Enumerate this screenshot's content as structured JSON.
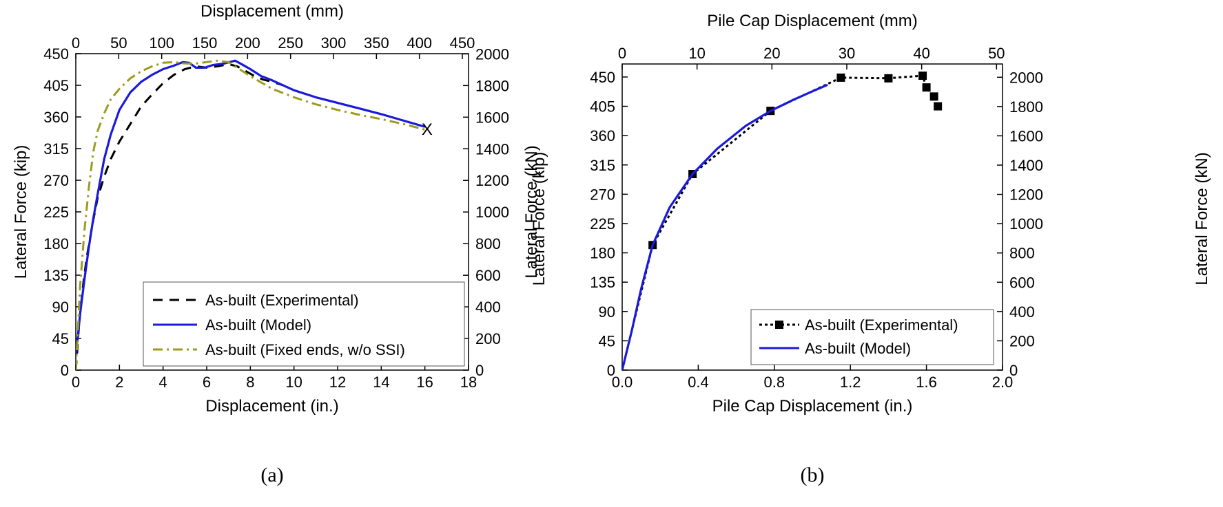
{
  "chart_data": [
    {
      "type": "line",
      "panel_label": "(a)",
      "xlabel": "Displacement (in.)",
      "x2label": "Displacement (mm)",
      "ylabel": "Lateral Force (kip)",
      "y2label": "Lateral Force (kN)",
      "xlim": [
        0,
        18
      ],
      "ylim": [
        0,
        450
      ],
      "x2lim": [
        0,
        457.2
      ],
      "y2lim": [
        0,
        2001.7
      ],
      "xticks": [
        0,
        2,
        4,
        6,
        8,
        10,
        12,
        14,
        16,
        18
      ],
      "yticks": [
        0,
        45,
        90,
        135,
        180,
        225,
        270,
        315,
        360,
        405,
        450
      ],
      "x2ticks": [
        0,
        50,
        100,
        150,
        200,
        250,
        300,
        350,
        400,
        450
      ],
      "y2ticks": [
        0,
        200,
        400,
        600,
        800,
        1000,
        1200,
        1400,
        1600,
        1800,
        2000
      ],
      "legend_position": "bottom-right",
      "annotation": "X",
      "annotation_point": [
        16.1,
        342
      ],
      "series": [
        {
          "name": "As-built (Experimental)",
          "style": "dashed",
          "color": "#000000",
          "x": [
            0.0,
            0.05,
            0.1,
            0.2,
            0.35,
            0.5,
            0.75,
            1.0,
            1.3,
            1.6,
            2.0,
            2.5,
            3.0,
            3.5,
            4.0,
            4.5,
            5.0,
            5.5,
            6.0,
            6.5,
            7.0,
            7.4,
            7.8,
            8.2,
            8.6,
            9.0,
            9.5
          ],
          "y": [
            0,
            20,
            45,
            80,
            125,
            160,
            205,
            245,
            275,
            300,
            325,
            350,
            375,
            392,
            408,
            420,
            428,
            432,
            430,
            432,
            435,
            432,
            425,
            418,
            413,
            410,
            405
          ]
        },
        {
          "name": "As-built (Model)",
          "style": "solid",
          "color": "#1a1adc",
          "x": [
            0.0,
            0.1,
            0.2,
            0.4,
            0.6,
            0.8,
            1.0,
            1.3,
            1.6,
            2.0,
            2.5,
            3.0,
            3.5,
            4.0,
            4.5,
            4.9,
            5.2,
            5.5,
            5.9,
            6.3,
            6.8,
            7.3,
            7.6,
            8.0,
            8.5,
            9.0,
            10.0,
            11.0,
            12.0,
            13.0,
            14.0,
            15.0,
            16.0
          ],
          "y": [
            20,
            50,
            80,
            130,
            175,
            215,
            250,
            300,
            335,
            370,
            395,
            410,
            420,
            428,
            433,
            438,
            437,
            430,
            430,
            434,
            436,
            440,
            435,
            428,
            418,
            412,
            398,
            388,
            380,
            372,
            364,
            355,
            346
          ]
        },
        {
          "name": "As-built (Fixed ends, w/o SSI)",
          "style": "dashdot",
          "color": "#9b9b1f",
          "x": [
            0.0,
            0.1,
            0.2,
            0.4,
            0.6,
            0.8,
            1.0,
            1.3,
            1.6,
            2.0,
            2.5,
            3.0,
            3.5,
            4.0,
            4.5,
            5.0,
            5.5,
            6.0,
            6.5,
            7.0,
            7.5,
            8.0,
            9.0,
            10.0,
            11.0,
            12.0,
            13.0,
            14.0,
            15.0,
            16.0
          ],
          "y": [
            0,
            60,
            120,
            200,
            260,
            310,
            340,
            365,
            385,
            400,
            415,
            425,
            432,
            437,
            438,
            436,
            436,
            438,
            440,
            438,
            428,
            418,
            400,
            388,
            378,
            370,
            363,
            357,
            350,
            342
          ]
        }
      ]
    },
    {
      "type": "line",
      "panel_label": "(b)",
      "xlabel": "Pile Cap Displacement (in.)",
      "x2label": "Pile Cap Displacement (mm)",
      "ylabel": "Lateral Force (kip)",
      "y2label": "Lateral Force (kN)",
      "xlim": [
        0,
        2.0
      ],
      "ylim": [
        0,
        470
      ],
      "x2lim": [
        0,
        50.8
      ],
      "y2lim": [
        0,
        2090.7
      ],
      "xticks": [
        0.0,
        0.4,
        0.8,
        1.2,
        1.6,
        2.0
      ],
      "xticklabels": [
        "0.0",
        "0.4",
        "0.8",
        "1.2",
        "1.6",
        "2.0"
      ],
      "yticks": [
        0,
        45,
        90,
        135,
        180,
        225,
        270,
        315,
        360,
        405,
        450
      ],
      "x2ticks": [
        0,
        10,
        20,
        30,
        40,
        50
      ],
      "y2ticks": [
        0,
        200,
        400,
        600,
        800,
        1000,
        1200,
        1400,
        1600,
        1800,
        2000
      ],
      "legend_position": "bottom-right",
      "series": [
        {
          "name": "As-built (Experimental)",
          "style": "dotted-square",
          "color": "#000000",
          "x": [
            0.0,
            0.16,
            0.37,
            0.78,
            1.15,
            1.4,
            1.58,
            1.6,
            1.64,
            1.66
          ],
          "y": [
            0,
            192,
            301,
            398,
            449,
            448,
            452,
            434,
            420,
            405
          ]
        },
        {
          "name": "As-built (Model)",
          "style": "solid",
          "color": "#1a1adc",
          "x": [
            0.0,
            0.05,
            0.1,
            0.16,
            0.25,
            0.37,
            0.5,
            0.65,
            0.78,
            0.9,
            1.0,
            1.08
          ],
          "y": [
            0,
            60,
            125,
            192,
            250,
            301,
            340,
            375,
            398,
            415,
            428,
            438
          ]
        }
      ]
    }
  ]
}
